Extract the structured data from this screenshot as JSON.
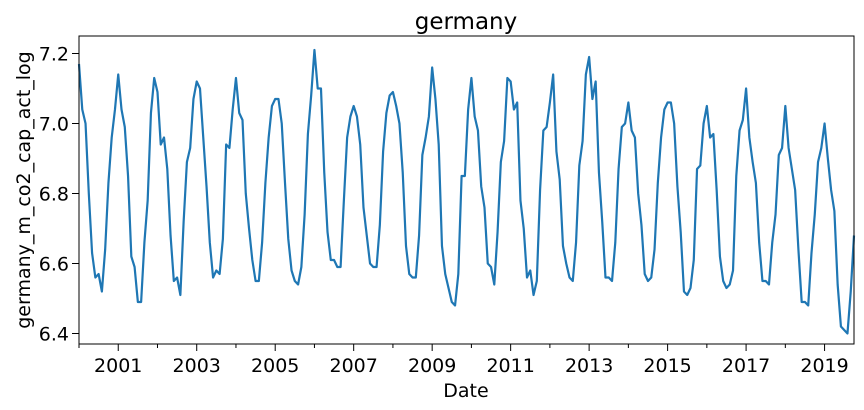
{
  "chart_data": {
    "type": "line",
    "title": "germany",
    "xlabel": "Date",
    "ylabel": "germany_m_co2_cap_act_log",
    "x_start": "2000-01",
    "x_end": "2019-10",
    "x_frequency": "monthly",
    "xlim": [
      "2000-01",
      "2019-10"
    ],
    "ylim": [
      6.37,
      7.25
    ],
    "x_ticks": [
      "2001",
      "2003",
      "2005",
      "2007",
      "2009",
      "2011",
      "2013",
      "2015",
      "2017",
      "2019"
    ],
    "y_ticks": [
      "6.4",
      "6.6",
      "6.8",
      "7.0",
      "7.2"
    ],
    "grid": false,
    "legend": "none",
    "line_color": "#1f77b4",
    "series": [
      {
        "values": [
          7.17,
          7.04,
          7.0,
          6.8,
          6.63,
          6.56,
          6.57,
          6.52,
          6.64,
          6.83,
          6.96,
          7.04,
          7.14,
          7.04,
          6.99,
          6.85,
          6.62,
          6.59,
          6.49,
          6.49,
          6.66,
          6.78,
          7.03,
          7.13,
          7.09,
          6.94,
          6.96,
          6.87,
          6.68,
          6.55,
          6.56,
          6.51,
          6.72,
          6.89,
          6.93,
          7.07,
          7.12,
          7.1,
          6.96,
          6.82,
          6.66,
          6.56,
          6.58,
          6.57,
          6.67,
          6.94,
          6.93,
          7.04,
          7.13,
          7.03,
          7.01,
          6.8,
          6.7,
          6.61,
          6.55,
          6.55,
          6.66,
          6.83,
          6.96,
          7.05,
          7.07,
          7.07,
          7.0,
          6.83,
          6.67,
          6.58,
          6.55,
          6.54,
          6.59,
          6.74,
          6.97,
          7.08,
          7.21,
          7.1,
          7.1,
          6.86,
          6.69,
          6.61,
          6.61,
          6.59,
          6.59,
          6.78,
          6.96,
          7.02,
          7.05,
          7.02,
          6.94,
          6.76,
          6.68,
          6.6,
          6.59,
          6.59,
          6.71,
          6.92,
          7.03,
          7.08,
          7.09,
          7.05,
          7.0,
          6.86,
          6.65,
          6.57,
          6.56,
          6.56,
          6.68,
          6.91,
          6.96,
          7.02,
          7.16,
          7.07,
          6.94,
          6.65,
          6.57,
          6.53,
          6.49,
          6.48,
          6.57,
          6.85,
          6.85,
          7.04,
          7.13,
          7.02,
          6.98,
          6.82,
          6.76,
          6.6,
          6.59,
          6.54,
          6.69,
          6.89,
          6.95,
          7.13,
          7.12,
          7.04,
          7.06,
          6.78,
          6.7,
          6.56,
          6.58,
          6.51,
          6.55,
          6.81,
          6.98,
          6.99,
          7.06,
          7.14,
          6.92,
          6.84,
          6.65,
          6.6,
          6.56,
          6.55,
          6.66,
          6.88,
          6.95,
          7.14,
          7.19,
          7.07,
          7.12,
          6.86,
          6.72,
          6.56,
          6.56,
          6.55,
          6.66,
          6.87,
          6.99,
          7.0,
          7.06,
          6.98,
          6.96,
          6.8,
          6.71,
          6.57,
          6.55,
          6.56,
          6.64,
          6.83,
          6.96,
          7.04,
          7.06,
          7.06,
          7.0,
          6.82,
          6.69,
          6.52,
          6.51,
          6.53,
          6.61,
          6.87,
          6.88,
          7.0,
          7.05,
          6.96,
          6.97,
          6.81,
          6.62,
          6.55,
          6.53,
          6.54,
          6.58,
          6.85,
          6.98,
          7.01,
          7.1,
          6.96,
          6.89,
          6.83,
          6.66,
          6.55,
          6.55,
          6.54,
          6.66,
          6.74,
          6.91,
          6.93,
          7.05,
          6.93,
          6.87,
          6.81,
          6.64,
          6.49,
          6.49,
          6.48,
          6.63,
          6.74,
          6.89,
          6.93,
          7.0,
          6.9,
          6.81,
          6.75,
          6.54,
          6.42,
          6.41,
          6.4,
          6.52,
          6.68
        ]
      }
    ]
  }
}
